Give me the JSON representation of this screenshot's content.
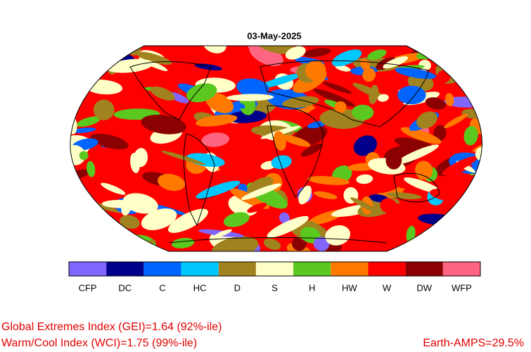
{
  "title": "03-May-2025",
  "legend": [
    {
      "label": "CFP",
      "color": "#8066ff"
    },
    {
      "label": "DC",
      "color": "#00008b"
    },
    {
      "label": "C",
      "color": "#0064ff"
    },
    {
      "label": "HC",
      "color": "#00c8ff"
    },
    {
      "label": "D",
      "color": "#a0821e"
    },
    {
      "label": "S",
      "color": "#ffffc8"
    },
    {
      "label": "H",
      "color": "#5ac81e"
    },
    {
      "label": "HW",
      "color": "#ff7800"
    },
    {
      "label": "W",
      "color": "#ff0000"
    },
    {
      "label": "DW",
      "color": "#8b0000"
    },
    {
      "label": "WFP",
      "color": "#ff6480"
    }
  ],
  "footer": {
    "gei": "Global Extremes Index (GEI)=1.64 (92%-ile)",
    "wci": "Warm/Cool Index (WCI)=1.75 (99%-ile)",
    "amps": "Earth-AMPS=29.5%"
  }
}
